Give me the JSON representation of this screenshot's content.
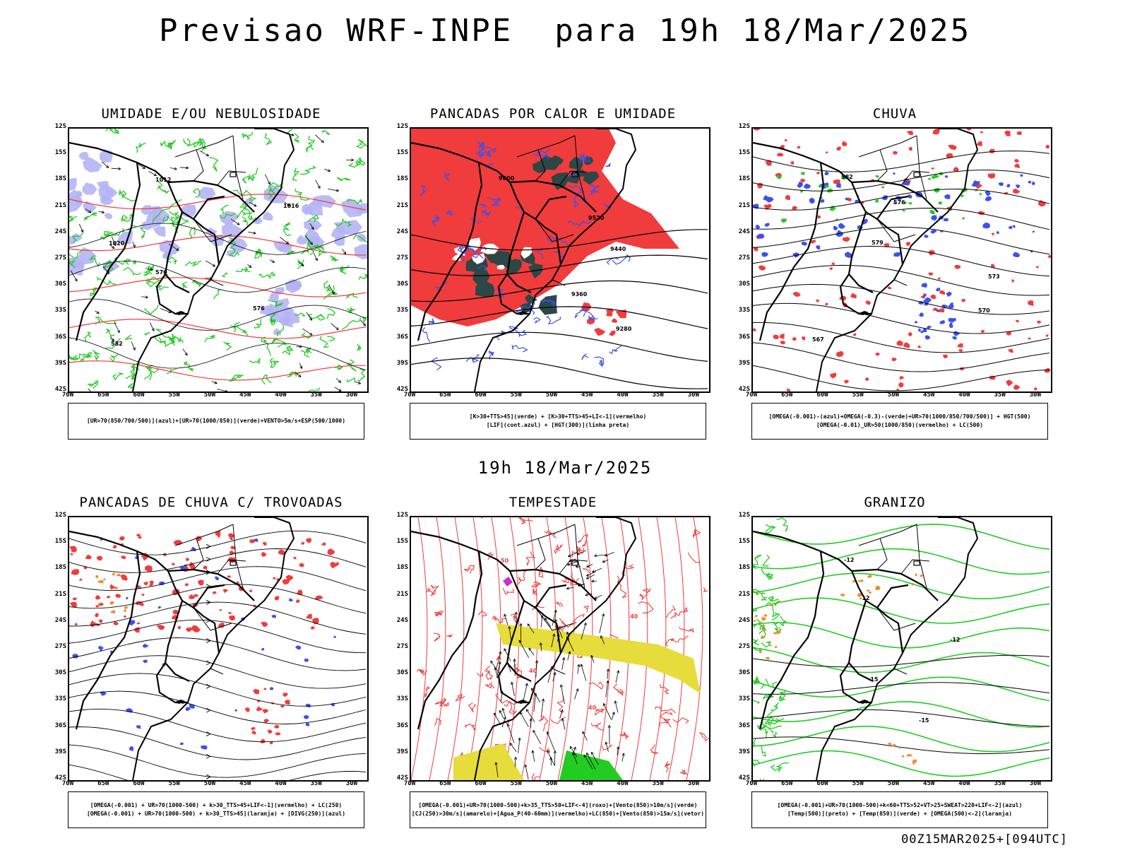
{
  "header": {
    "title": "Previsao WRF-INPE  para 19h 18/Mar/2025"
  },
  "middle": {
    "title": "19h 18/Mar/2025"
  },
  "footer": {
    "stamp": "00Z15MAR2025+[094UTC]"
  },
  "axes": {
    "lat_labels": [
      "12S",
      "15S",
      "18S",
      "21S",
      "24S",
      "27S",
      "30S",
      "33S",
      "36S",
      "39S",
      "42S"
    ],
    "lon_labels": [
      "70W",
      "65W",
      "60W",
      "55W",
      "50W",
      "45W",
      "40W",
      "35W",
      "30W"
    ]
  },
  "panels": [
    {
      "title": "UMIDADE E/OU NEBULOSIDADE",
      "legend": [
        "[UR>70(850/700/500)](azul)+[UR>70(1000/850)](verde)+VENTO>5m/s+ESP(500/1000)"
      ],
      "contour_labels": [
        "1012",
        "1016",
        "1020",
        "570",
        "576",
        "582"
      ]
    },
    {
      "title": "PANCADAS POR CALOR E UMIDADE",
      "legend": [
        "[K>30+TTS>45](verde) + [K>30+TTS>45+LI<-1](vermelho)",
        "[LIF](cont.azul) + [HGT(300)](linha preta)"
      ],
      "contour_labels": [
        "9600",
        "9520",
        "9440",
        "9360",
        "9280"
      ]
    },
    {
      "title": "CHUVA",
      "legend": [
        "[OMEGA(-0.001)-(azul)+OMEGA(-0.3)-(verde)+UR>70(1000/850/700/500)] + HGT(500)",
        "[OMEGA(-0.01)_UR>50(1000/850)(vermelho) + LC(500)"
      ],
      "contour_labels": [
        "582",
        "576",
        "579",
        "573",
        "570",
        "567"
      ]
    },
    {
      "title": "PANCADAS DE CHUVA C/ TROVOADAS",
      "legend": [
        "[OMEGA(-0.001) + UR>70(1000-500) + k>30_TTS>45+LIF<-1](vermelho) + LC(250)",
        "[OMEGA(-0.001) + UR>70(1000-500) + k>30_TTS>45](laranja) + [DIVG(250)](azul)"
      ],
      "contour_labels": []
    },
    {
      "title": "TEMPESTADE",
      "legend": [
        "[OMEGA(-0.001)+UR>70(1000-500)+k>35_TTS>50+LIF<-4](roxo)+[Vento(850)>10m/s](verde)",
        "[CJ(250)>30m/s](amarelo)+[Agua_P(40-60mm)](vermelho)+LC(850)+[Vento(850)>15m/s](vetor)"
      ],
      "contour_labels": [
        "50",
        "40",
        "40",
        "40"
      ]
    },
    {
      "title": "GRANIZO",
      "legend": [
        "[OMEGA(-0.001)+UR>70(1000-500)+k<60+TTS>52+VT>25+SWEAT>220+LIF<-2](azul)",
        "[Temp(500)](preto) + [Temp(850)](verde) + [OMEGA(500)<-2](laranja)"
      ],
      "contour_labels": [
        "-12",
        "-12",
        "-12",
        "-15",
        "-15"
      ]
    }
  ],
  "colors": {
    "red": "#f03c3c",
    "blue": "#3c50f0",
    "green": "#22cc22",
    "lavender": "#b4b4f5",
    "darkteal": "#2d4646",
    "yellow": "#e6dc3c",
    "orange": "#f08c28",
    "purple": "#c832c8"
  }
}
